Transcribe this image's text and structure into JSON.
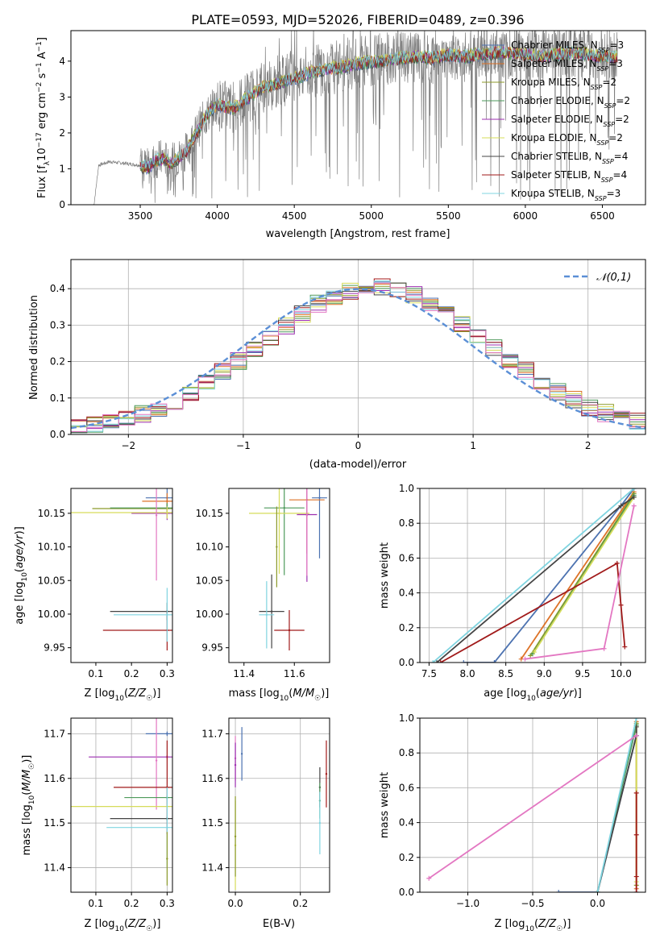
{
  "figure": {
    "title": "PLATE=0593, MJD=52026, FIBERID=0489, z=0.396"
  },
  "colors": {
    "data": "#7f7f7f",
    "grid": "#b0b0b0",
    "normal": "#5b8fd6"
  },
  "series_styles": [
    {
      "name": "Chabrier MILES",
      "nssp": "3",
      "color": "#4c72b0"
    },
    {
      "name": "Salpeter MILES",
      "nssp": "3",
      "color": "#dd7227"
    },
    {
      "name": "Kroupa MILES",
      "nssp": "2",
      "color": "#8c9a2a"
    },
    {
      "name": "Chabrier ELODIE",
      "nssp": "2",
      "color": "#4e9a5b"
    },
    {
      "name": "Salpeter ELODIE",
      "nssp": "2",
      "color": "#9c2fb0"
    },
    {
      "name": "Kroupa ELODIE",
      "nssp": "2",
      "color": "#d6dc5a"
    },
    {
      "name": "Chabrier STELIB",
      "nssp": "4",
      "color": "#444444"
    },
    {
      "name": "Salpeter STELIB",
      "nssp": "4",
      "color": "#a11a1a"
    },
    {
      "name": "Kroupa STELIB",
      "nssp": "3",
      "color": "#7fd4e0"
    }
  ],
  "chart_data": [
    {
      "id": "spectrum",
      "type": "line",
      "title": "PLATE=0593, MJD=52026, FIBERID=0489, z=0.396",
      "xlabel": "wavelength [Angstrom, rest frame]",
      "ylabel": "Flux [f_λ 10^-17 erg cm^-2 s^-1 A^-1]",
      "xlim": [
        3050,
        6780
      ],
      "ylim": [
        0,
        4.85
      ],
      "xticks": [
        3500,
        4000,
        4500,
        5000,
        5500,
        6000,
        6500
      ],
      "yticks": [
        0,
        1,
        2,
        3,
        4
      ],
      "grid": false,
      "legend_position": "top-right",
      "data_anchors": {
        "x": [
          3200,
          3230,
          3300,
          3400,
          3500,
          3550,
          3600,
          3650,
          3700,
          3800,
          3850,
          3900,
          3950,
          4000,
          4100,
          4200,
          4300,
          4400,
          4500,
          4600,
          4700,
          4800,
          4900,
          5000,
          5100,
          5200,
          5300,
          5400,
          5500,
          5600,
          5700,
          5800,
          5900,
          6000,
          6100,
          6200,
          6300,
          6400,
          6500,
          6600
        ],
        "y": [
          0.0,
          1.1,
          1.2,
          1.15,
          1.1,
          1.05,
          1.25,
          1.3,
          1.15,
          1.5,
          1.9,
          2.3,
          2.6,
          2.8,
          2.7,
          3.0,
          3.3,
          3.4,
          3.55,
          3.7,
          3.8,
          3.85,
          3.95,
          4.0,
          4.05,
          4.1,
          4.15,
          4.1,
          4.2,
          4.15,
          4.2,
          4.25,
          4.25,
          4.2,
          4.15,
          4.2,
          4.25,
          4.2,
          4.15,
          4.1
        ]
      },
      "model_range": [
        3500,
        6600
      ]
    },
    {
      "id": "residuals",
      "type": "line",
      "xlabel": "(data-model)/error",
      "ylabel": "Normed distribution",
      "xlim": [
        -2.5,
        2.5
      ],
      "ylim": [
        0,
        0.48
      ],
      "xticks": [
        -2,
        -1,
        0,
        1,
        2
      ],
      "yticks": [
        0.0,
        0.1,
        0.2,
        0.3,
        0.4
      ],
      "grid": true,
      "legend_position": "top-right",
      "legend_label": "𝒩(0,1)",
      "bins": 36
    },
    {
      "id": "age-vs-Z",
      "type": "scatter",
      "xlabel": "Z [log10(Z/Z☉)]",
      "ylabel": "age  [log10(age/yr)]",
      "xlim": [
        0.03,
        0.315
      ],
      "ylim": [
        9.928,
        10.187
      ],
      "xticks": [
        0.1,
        0.2,
        0.3
      ],
      "yticks": [
        9.95,
        10.0,
        10.05,
        10.1,
        10.15
      ],
      "grid": false,
      "points": [
        {
          "s": 0,
          "x": 0.3,
          "y": 10.173,
          "xerr": 0.06,
          "yerr": 0.014
        },
        {
          "s": 1,
          "x": 0.3,
          "y": 10.168,
          "xerr": 0.07,
          "yerr": 0.012
        },
        {
          "s": 2,
          "x": 0.3,
          "y": 10.157,
          "xerr": 0.21,
          "yerr": 0.008
        },
        {
          "s": 3,
          "x": 0.3,
          "y": 10.158,
          "xerr": 0.16,
          "yerr": 0.007
        },
        {
          "s": 4,
          "x": 0.3,
          "y": 10.15,
          "xerr": 0.1,
          "yerr": 0.01
        },
        {
          "s": 5,
          "x": 0.3,
          "y": 10.151,
          "xerr": 0.27,
          "yerr": 0.009
        },
        {
          "s": 6,
          "x": 0.3,
          "y": 10.004,
          "xerr": 0.16,
          "yerr": 0.013
        },
        {
          "s": 7,
          "x": 0.3,
          "y": 9.976,
          "xerr": 0.18,
          "yerr": 0.03
        },
        {
          "s": 8,
          "x": 0.3,
          "y": 9.999,
          "xerr": 0.15,
          "yerr": 0.04
        },
        {
          "s": 9,
          "x": 0.27,
          "y": 10.147,
          "xerr": 0.0,
          "yerr": 0.097
        }
      ]
    },
    {
      "id": "age-vs-mass",
      "type": "scatter",
      "xlabel": "mass [log10(M/M☉)]",
      "ylabel": "",
      "xlim": [
        11.34,
        11.74
      ],
      "ylim": [
        9.928,
        10.187
      ],
      "xticks": [
        11.4,
        11.6
      ],
      "yticks": [
        9.95,
        10.0,
        10.05,
        10.1,
        10.15
      ],
      "grid": false,
      "points": [
        {
          "s": 0,
          "x": 11.7,
          "y": 10.173,
          "xerr": 0.03,
          "yerr": 0.09
        },
        {
          "s": 1,
          "x": 11.65,
          "y": 10.17,
          "xerr": 0.07,
          "yerr": 0.08
        },
        {
          "s": 3,
          "x": 11.56,
          "y": 10.158,
          "xerr": 0.08,
          "yerr": 0.1
        },
        {
          "s": 4,
          "x": 11.65,
          "y": 10.148,
          "xerr": 0.04,
          "yerr": 0.1
        },
        {
          "s": 5,
          "x": 11.54,
          "y": 10.15,
          "xerr": 0.12,
          "yerr": 0.09
        },
        {
          "s": 6,
          "x": 11.51,
          "y": 10.004,
          "xerr": 0.05,
          "yerr": 0.055
        },
        {
          "s": 7,
          "x": 11.58,
          "y": 9.976,
          "xerr": 0.06,
          "yerr": 0.03
        },
        {
          "s": 8,
          "x": 11.49,
          "y": 9.999,
          "xerr": 0.03,
          "yerr": 0.05
        },
        {
          "s": 9,
          "x": 11.65,
          "y": 10.147,
          "xerr": 0.0,
          "yerr": 0.09
        },
        {
          "s": 2,
          "x": 11.53,
          "y": 10.1,
          "xerr": 0.0,
          "yerr": 0.06
        }
      ]
    },
    {
      "id": "mass-weight-vs-age",
      "type": "line",
      "xlabel": "age  [log10(age/yr)]",
      "ylabel": "mass weight",
      "xlim": [
        7.38,
        10.32
      ],
      "ylim": [
        0.0,
        1.0
      ],
      "xticks": [
        7.5,
        8.0,
        8.5,
        9.0,
        9.5,
        10.0
      ],
      "yticks": [
        0.0,
        0.2,
        0.4,
        0.6,
        0.8,
        1.0
      ],
      "grid": true,
      "series": [
        {
          "s": 0,
          "x": [
            7.95,
            8.35,
            10.0,
            10.17
          ],
          "y": [
            0.0,
            0.0,
            0.9,
            1.0
          ]
        },
        {
          "s": 1,
          "x": [
            8.7,
            10.17
          ],
          "y": [
            0.02,
            0.98
          ]
        },
        {
          "s": 2,
          "x": [
            8.82,
            10.17
          ],
          "y": [
            0.04,
            0.97
          ]
        },
        {
          "s": 3,
          "x": [
            8.85,
            10.17
          ],
          "y": [
            0.05,
            0.96
          ]
        },
        {
          "s": 5,
          "x": [
            8.87,
            10.17
          ],
          "y": [
            0.06,
            0.95
          ]
        },
        {
          "s": 6,
          "x": [
            7.6,
            10.0,
            10.17
          ],
          "y": [
            0.0,
            0.9,
            0.95
          ]
        },
        {
          "s": 7,
          "x": [
            7.65,
            9.95,
            10.0,
            10.05
          ],
          "y": [
            0.0,
            0.57,
            0.33,
            0.09
          ]
        },
        {
          "s": 8,
          "x": [
            7.55,
            10.17
          ],
          "y": [
            0.0,
            1.0
          ]
        },
        {
          "s": 9,
          "x": [
            8.75,
            9.78,
            10.17
          ],
          "y": [
            0.02,
            0.08,
            0.9
          ]
        }
      ]
    },
    {
      "id": "mass-vs-Z",
      "type": "scatter",
      "xlabel": "Z [log10(Z/Z☉)]",
      "ylabel": "mass [log10(M/M☉)]",
      "xlim": [
        0.03,
        0.315
      ],
      "ylim": [
        11.345,
        11.735
      ],
      "xticks": [
        0.1,
        0.2,
        0.3
      ],
      "yticks": [
        11.4,
        11.5,
        11.6,
        11.7
      ],
      "grid": true,
      "points": [
        {
          "s": 0,
          "x": 0.3,
          "y": 11.7,
          "xerr": 0.06,
          "yerr": 0.005
        },
        {
          "s": 4,
          "x": 0.3,
          "y": 11.648,
          "xerr": 0.22,
          "yerr": 0.004
        },
        {
          "s": 9,
          "x": 0.27,
          "y": 11.64,
          "xerr": 0.0,
          "yerr": 0.11
        },
        {
          "s": 7,
          "x": 0.3,
          "y": 11.58,
          "xerr": 0.15,
          "yerr": 0.105
        },
        {
          "s": 3,
          "x": 0.3,
          "y": 11.557,
          "xerr": 0.12,
          "yerr": 0.004
        },
        {
          "s": 5,
          "x": 0.3,
          "y": 11.537,
          "xerr": 0.27,
          "yerr": 0.004
        },
        {
          "s": 6,
          "x": 0.3,
          "y": 11.51,
          "xerr": 0.16,
          "yerr": 0.004
        },
        {
          "s": 8,
          "x": 0.3,
          "y": 11.49,
          "xerr": 0.17,
          "yerr": 0.09
        },
        {
          "s": 2,
          "x": 0.3,
          "y": 11.42,
          "xerr": 0.0,
          "yerr": 0.06
        }
      ]
    },
    {
      "id": "mass-vs-EBV",
      "type": "scatter",
      "xlabel": "E(B-V)",
      "ylabel": "",
      "xlim": [
        -0.02,
        0.29
      ],
      "ylim": [
        11.345,
        11.735
      ],
      "xticks": [
        0.0,
        0.2
      ],
      "yticks": [
        11.4,
        11.5,
        11.6,
        11.7
      ],
      "grid": true,
      "points": [
        {
          "s": 0,
          "x": 0.02,
          "y": 11.655,
          "xerr": 0.0,
          "yerr": 0.06
        },
        {
          "s": 9,
          "x": 0.0,
          "y": 11.645,
          "xerr": 0.0,
          "yerr": 0.05
        },
        {
          "s": 4,
          "x": 0.0,
          "y": 11.63,
          "xerr": 0.0,
          "yerr": 0.05
        },
        {
          "s": 5,
          "x": 0.0,
          "y": 11.45,
          "xerr": 0.0,
          "yerr": 0.1
        },
        {
          "s": 2,
          "x": 0.0,
          "y": 11.47,
          "xerr": 0.0,
          "yerr": 0.09
        },
        {
          "s": 7,
          "x": 0.28,
          "y": 11.61,
          "xerr": 0.0,
          "yerr": 0.075
        },
        {
          "s": 6,
          "x": 0.26,
          "y": 11.58,
          "xerr": 0.0,
          "yerr": 0.045
        },
        {
          "s": 3,
          "x": 0.26,
          "y": 11.55,
          "xerr": 0.0,
          "yerr": 0.04
        },
        {
          "s": 8,
          "x": 0.26,
          "y": 11.5,
          "xerr": 0.0,
          "yerr": 0.07
        }
      ]
    },
    {
      "id": "mass-weight-vs-Z",
      "type": "line",
      "xlabel": "Z [log10(Z/Z☉)]",
      "ylabel": "mass weight",
      "xlim": [
        -1.37,
        0.37
      ],
      "ylim": [
        0.0,
        1.0
      ],
      "xticks": [
        -1.0,
        -0.5,
        0.0
      ],
      "yticks": [
        0.0,
        0.2,
        0.4,
        0.6,
        0.8,
        1.0
      ],
      "grid": true,
      "series": [
        {
          "s": 0,
          "x": [
            -0.3,
            0.0,
            0.3
          ],
          "y": [
            0.0,
            0.0,
            0.9
          ]
        },
        {
          "s": 1,
          "x": [
            0.3,
            0.3
          ],
          "y": [
            0.02,
            0.98
          ]
        },
        {
          "s": 2,
          "x": [
            0.3,
            0.3
          ],
          "y": [
            0.04,
            0.97
          ]
        },
        {
          "s": 3,
          "x": [
            0.0,
            0.3
          ],
          "y": [
            0.0,
            0.96
          ]
        },
        {
          "s": 5,
          "x": [
            0.3,
            0.3
          ],
          "y": [
            0.06,
            0.95
          ]
        },
        {
          "s": 6,
          "x": [
            0.0,
            0.3,
            0.3
          ],
          "y": [
            0.0,
            0.9,
            0.95
          ]
        },
        {
          "s": 7,
          "x": [
            0.3,
            0.3,
            0.3,
            0.3
          ],
          "y": [
            0.0,
            0.57,
            0.33,
            0.09
          ]
        },
        {
          "s": 8,
          "x": [
            0.0,
            0.3
          ],
          "y": [
            0.0,
            1.0
          ]
        },
        {
          "s": 9,
          "x": [
            -1.3,
            0.3
          ],
          "y": [
            0.08,
            0.9
          ]
        }
      ]
    }
  ]
}
